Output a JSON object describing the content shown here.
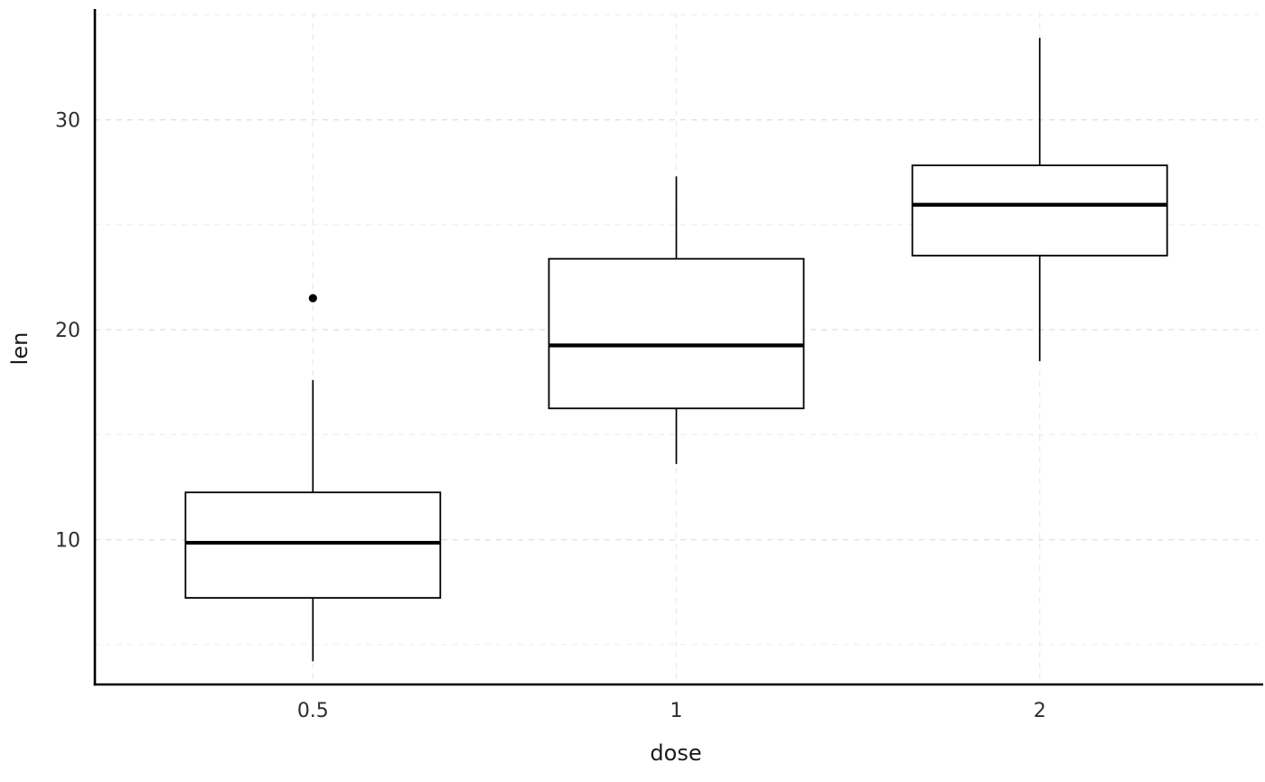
{
  "chart_data": {
    "type": "boxplot",
    "title": "",
    "xlabel": "dose",
    "ylabel": "len",
    "categories": [
      "0.5",
      "1",
      "2"
    ],
    "series": [
      {
        "category": "0.5",
        "whisker_low": 4.2,
        "q1": 7.225,
        "median": 9.85,
        "q3": 12.25,
        "whisker_high": 17.6,
        "outliers": [
          21.5
        ]
      },
      {
        "category": "1",
        "whisker_low": 13.6,
        "q1": 16.25,
        "median": 19.25,
        "q3": 23.375,
        "whisker_high": 27.3,
        "outliers": []
      },
      {
        "category": "2",
        "whisker_low": 18.5,
        "q1": 23.525,
        "median": 25.95,
        "q3": 27.825,
        "whisker_high": 33.9,
        "outliers": []
      }
    ],
    "y_axis": {
      "label": "len",
      "ticks": [
        10,
        20,
        30
      ],
      "minor_ticks": [
        5,
        15,
        25,
        35
      ],
      "range": [
        3.1,
        35.1
      ]
    },
    "x_axis": {
      "label": "dose",
      "ticks": [
        "0.5",
        "1",
        "2"
      ]
    },
    "grid": {
      "style": "dashed",
      "major_color": "#e4e4e4",
      "minor_color": "#f0f0f0",
      "vertical_color": "#ececec"
    },
    "colors": {
      "background": "#ffffff",
      "box_fill": "#ffffff",
      "box_stroke": "#000000",
      "median": "#000000",
      "whisker": "#000000",
      "outlier": "#000000",
      "axis_line": "#000000",
      "tick_text": "#2e2e2e",
      "title_text": "#1a1a1a"
    },
    "legend": {
      "visible": false
    }
  }
}
